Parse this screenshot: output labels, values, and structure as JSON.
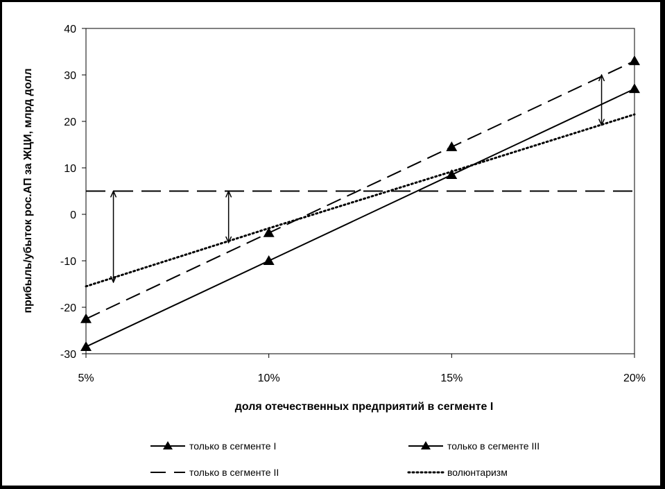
{
  "chart_data": {
    "type": "line",
    "x": [
      "5%",
      "10%",
      "15%",
      "20%"
    ],
    "x_values": [
      5,
      10,
      15,
      20
    ],
    "xlim": [
      5,
      20
    ],
    "ylim": [
      -30,
      40
    ],
    "yticks": [
      40,
      30,
      20,
      10,
      0,
      -10,
      -20,
      -30
    ],
    "xlabel": "доля отечественных предприятий в сегменте I",
    "ylabel": "прибыль/убыток рос.АП за ЖЦИ, млрд долл",
    "grid": false,
    "legend_position": "bottom",
    "series": [
      {
        "name": "только в сегменте I",
        "style": "solid",
        "marker": "triangle",
        "values": [
          -28.5,
          -10,
          8.5,
          27
        ]
      },
      {
        "name": "только в сегменте III",
        "style": "dash",
        "marker": "triangle",
        "values": [
          -22.5,
          -4,
          14.5,
          33
        ]
      },
      {
        "name": "только в сегменте II",
        "style": "long-dash",
        "marker": "none",
        "values": [
          5,
          5,
          5,
          5
        ]
      },
      {
        "name": "волюнтаризм",
        "style": "dotted",
        "marker": "none",
        "values": [
          -15.5,
          -3,
          9.2,
          21.5
        ]
      }
    ],
    "arrows": [
      {
        "x": 5.75,
        "y_from": 5,
        "y_to": -14.6
      },
      {
        "x": 8.9,
        "y_from": 5,
        "y_to": -6.1
      },
      {
        "x": 19.1,
        "y_from": 30,
        "y_to": 19.2
      }
    ],
    "colors": {
      "line": "#000000",
      "background": "#ffffff",
      "frame": "#000000"
    }
  }
}
